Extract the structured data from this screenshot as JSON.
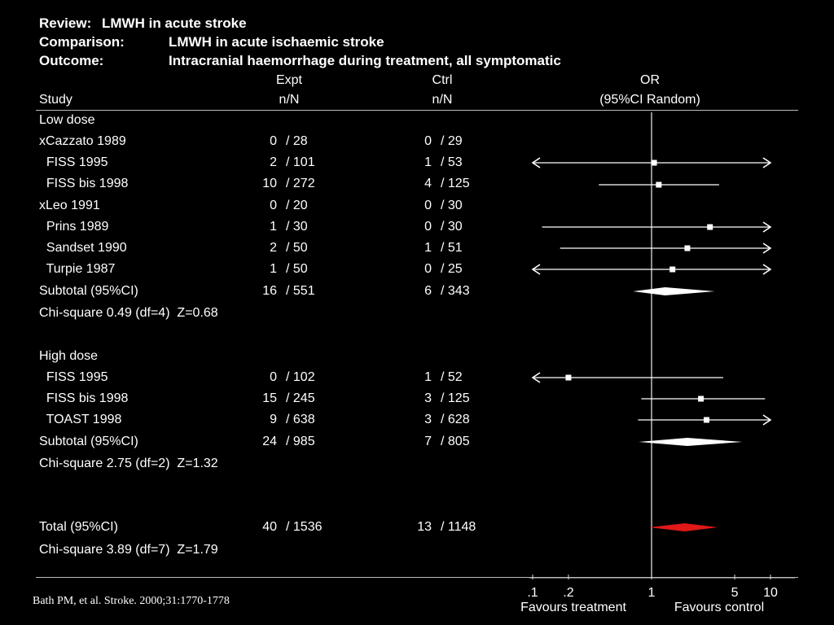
{
  "header": {
    "review_label": "Review:",
    "review_value": "LMWH in acute stroke",
    "comparison_label": "Comparison:",
    "comparison_value": "LMWH in acute ischaemic stroke",
    "outcome_label": "Outcome:",
    "outcome_value": "Intracranial haemorrhage during treatment, all symptomatic"
  },
  "columns": {
    "study": "Study",
    "expt_top": "Expt",
    "expt_bottom": "n/N",
    "ctrl_top": "Ctrl",
    "ctrl_bottom": "n/N",
    "or_top": "OR",
    "or_bottom": "(95%CI Random)"
  },
  "rows": [
    {
      "label": "Low dose",
      "expt_n": "",
      "expt_N": "",
      "ctrl_n": "",
      "ctrl_N": ""
    },
    {
      "label": "xCazzato 1989",
      "expt_n": "0",
      "expt_N": "/ 28",
      "ctrl_n": "0",
      "ctrl_N": "/ 29"
    },
    {
      "label": "  FISS 1995",
      "expt_n": "2",
      "expt_N": "/ 101",
      "ctrl_n": "1",
      "ctrl_N": "/ 53"
    },
    {
      "label": "  FISS bis 1998",
      "expt_n": "10",
      "expt_N": "/ 272",
      "ctrl_n": "4",
      "ctrl_N": "/ 125"
    },
    {
      "label": "xLeo 1991",
      "expt_n": "0",
      "expt_N": "/ 20",
      "ctrl_n": "0",
      "ctrl_N": "/ 30"
    },
    {
      "label": "  Prins 1989",
      "expt_n": "1",
      "expt_N": "/ 30",
      "ctrl_n": "0",
      "ctrl_N": "/ 30"
    },
    {
      "label": "  Sandset 1990",
      "expt_n": "2",
      "expt_N": "/ 50",
      "ctrl_n": "1",
      "ctrl_N": "/ 51"
    },
    {
      "label": "  Turpie 1987",
      "expt_n": "1",
      "expt_N": "/ 50",
      "ctrl_n": "0",
      "ctrl_N": "/ 25"
    },
    {
      "label": "Subtotal (95%CI)",
      "expt_n": "16",
      "expt_N": "/ 551",
      "ctrl_n": "6",
      "ctrl_N": "/ 343"
    },
    {
      "label": "Chi-square 0.49 (df=4)  Z=0.68",
      "expt_n": "",
      "expt_N": "",
      "ctrl_n": "",
      "ctrl_N": ""
    },
    {
      "label": "High dose",
      "expt_n": "",
      "expt_N": "",
      "ctrl_n": "",
      "ctrl_N": ""
    },
    {
      "label": "  FISS 1995",
      "expt_n": "0",
      "expt_N": "/ 102",
      "ctrl_n": "1",
      "ctrl_N": "/ 52"
    },
    {
      "label": "  FISS bis 1998",
      "expt_n": "15",
      "expt_N": "/ 245",
      "ctrl_n": "3",
      "ctrl_N": "/ 125"
    },
    {
      "label": "  TOAST 1998",
      "expt_n": "9",
      "expt_N": "/ 638",
      "ctrl_n": "3",
      "ctrl_N": "/ 628"
    },
    {
      "label": "Subtotal (95%CI)",
      "expt_n": "24",
      "expt_N": "/ 985",
      "ctrl_n": "7",
      "ctrl_N": "/ 805"
    },
    {
      "label": "Chi-square 2.75 (df=2)  Z=1.32",
      "expt_n": "",
      "expt_N": "",
      "ctrl_n": "",
      "ctrl_N": ""
    },
    {
      "label": "Total (95%CI)",
      "expt_n": "40",
      "expt_N": "/ 1536",
      "ctrl_n": "13",
      "ctrl_N": "/ 1148"
    },
    {
      "label": "Chi-square 3.89 (df=7)  Z=1.79",
      "expt_n": "",
      "expt_N": "",
      "ctrl_n": "",
      "ctrl_N": ""
    }
  ],
  "chart_data": {
    "type": "forest",
    "x_scale": "log",
    "xlim": [
      0.1,
      10
    ],
    "reference_line": 1,
    "x_ticks": [
      ".1",
      ".2",
      "1",
      "5",
      "10"
    ],
    "x_tick_values": [
      0.1,
      0.2,
      1,
      5,
      10
    ],
    "xlabel_left": "Favours treatment",
    "xlabel_right": "Favours control",
    "colors": {
      "total_diamond": "#e01818",
      "marks": "#ffffff"
    },
    "studies": [
      {
        "row": 2,
        "or": 1.05,
        "lo": 0.1,
        "hi": 10,
        "arrow_lo": true,
        "arrow_hi": true
      },
      {
        "row": 3,
        "or": 1.15,
        "lo": 0.36,
        "hi": 3.7
      },
      {
        "row": 5,
        "or": 3.1,
        "lo": 0.12,
        "hi": 10,
        "arrow_hi": true
      },
      {
        "row": 6,
        "or": 2.0,
        "lo": 0.17,
        "hi": 10,
        "arrow_hi": true
      },
      {
        "row": 7,
        "or": 1.5,
        "lo": 0.1,
        "hi": 10,
        "arrow_lo": true,
        "arrow_hi": true
      },
      {
        "row": 11,
        "or": 0.2,
        "lo": 0.1,
        "hi": 4.0,
        "arrow_lo": true
      },
      {
        "row": 12,
        "or": 2.6,
        "lo": 0.82,
        "hi": 9.0
      },
      {
        "row": 13,
        "or": 2.9,
        "lo": 0.77,
        "hi": 10,
        "arrow_hi": true
      }
    ],
    "diamonds": [
      {
        "row": 8,
        "or": 1.3,
        "lo": 0.7,
        "hi": 3.4
      },
      {
        "row": 14,
        "or": 2.0,
        "lo": 0.78,
        "hi": 5.8
      },
      {
        "row": 16,
        "or": 1.9,
        "lo": 0.95,
        "hi": 3.6,
        "color": "#e01818"
      }
    ]
  },
  "citation": "Bath PM, et al. Stroke. 2000;31:1770-1778"
}
